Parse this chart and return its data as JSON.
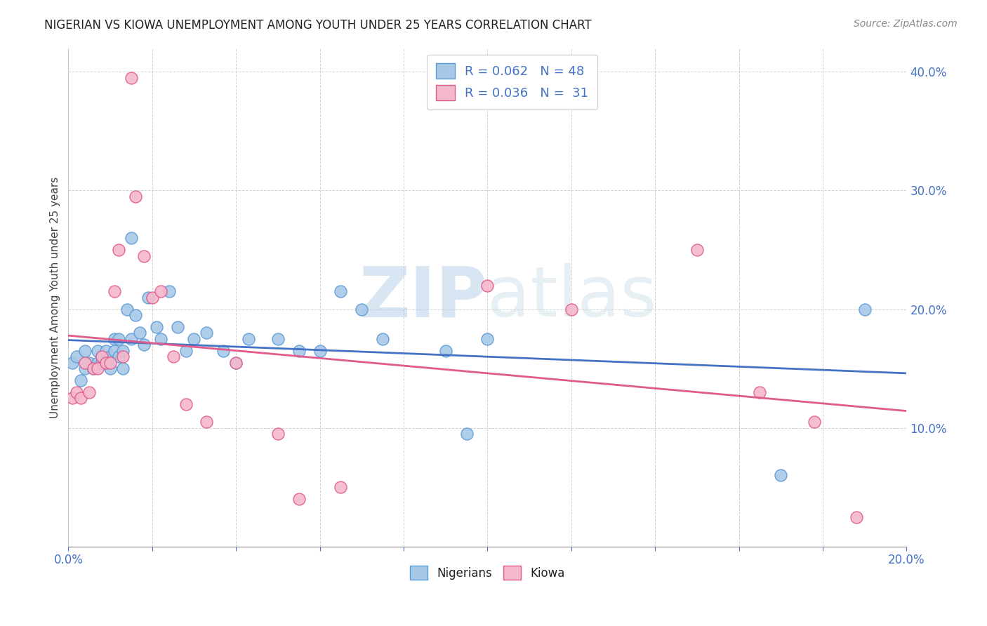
{
  "title": "NIGERIAN VS KIOWA UNEMPLOYMENT AMONG YOUTH UNDER 25 YEARS CORRELATION CHART",
  "source": "Source: ZipAtlas.com",
  "ylabel": "Unemployment Among Youth under 25 years",
  "xlim": [
    0.0,
    0.2
  ],
  "ylim": [
    0.0,
    0.42
  ],
  "xticks": [
    0.0,
    0.02,
    0.04,
    0.06,
    0.08,
    0.1,
    0.12,
    0.14,
    0.16,
    0.18,
    0.2
  ],
  "yticks": [
    0.0,
    0.1,
    0.2,
    0.3,
    0.4
  ],
  "watermark_zip": "ZIP",
  "watermark_atlas": "atlas",
  "nigerians_color": "#a8c8e8",
  "kiowa_color": "#f4b8cc",
  "nigerians_edge_color": "#5b9bd5",
  "kiowa_edge_color": "#e05a8a",
  "nigerians_line_color": "#4472c4",
  "kiowa_line_color": "#e05a8a",
  "R_nigerian": 0.062,
  "N_nigerian": 48,
  "R_kiowa": 0.036,
  "N_kiowa": 31,
  "nigerians_x": [
    0.001,
    0.002,
    0.003,
    0.004,
    0.004,
    0.005,
    0.006,
    0.007,
    0.007,
    0.008,
    0.008,
    0.009,
    0.01,
    0.01,
    0.011,
    0.011,
    0.012,
    0.012,
    0.013,
    0.013,
    0.014,
    0.015,
    0.015,
    0.016,
    0.017,
    0.018,
    0.019,
    0.021,
    0.022,
    0.024,
    0.026,
    0.028,
    0.03,
    0.033,
    0.037,
    0.04,
    0.043,
    0.05,
    0.055,
    0.06,
    0.065,
    0.07,
    0.075,
    0.09,
    0.095,
    0.1,
    0.17,
    0.19
  ],
  "nigerians_y": [
    0.155,
    0.16,
    0.14,
    0.15,
    0.165,
    0.155,
    0.15,
    0.155,
    0.165,
    0.16,
    0.155,
    0.165,
    0.15,
    0.16,
    0.165,
    0.175,
    0.16,
    0.175,
    0.15,
    0.165,
    0.2,
    0.26,
    0.175,
    0.195,
    0.18,
    0.17,
    0.21,
    0.185,
    0.175,
    0.215,
    0.185,
    0.165,
    0.175,
    0.18,
    0.165,
    0.155,
    0.175,
    0.175,
    0.165,
    0.165,
    0.215,
    0.2,
    0.175,
    0.165,
    0.095,
    0.175,
    0.06,
    0.2
  ],
  "kiowa_x": [
    0.001,
    0.002,
    0.003,
    0.004,
    0.005,
    0.006,
    0.007,
    0.008,
    0.009,
    0.01,
    0.011,
    0.012,
    0.013,
    0.015,
    0.016,
    0.018,
    0.02,
    0.022,
    0.025,
    0.028,
    0.033,
    0.04,
    0.05,
    0.055,
    0.065,
    0.1,
    0.12,
    0.15,
    0.165,
    0.178,
    0.188
  ],
  "kiowa_y": [
    0.125,
    0.13,
    0.125,
    0.155,
    0.13,
    0.15,
    0.15,
    0.16,
    0.155,
    0.155,
    0.215,
    0.25,
    0.16,
    0.395,
    0.295,
    0.245,
    0.21,
    0.215,
    0.16,
    0.12,
    0.105,
    0.155,
    0.095,
    0.04,
    0.05,
    0.22,
    0.2,
    0.25,
    0.13,
    0.105,
    0.025
  ]
}
